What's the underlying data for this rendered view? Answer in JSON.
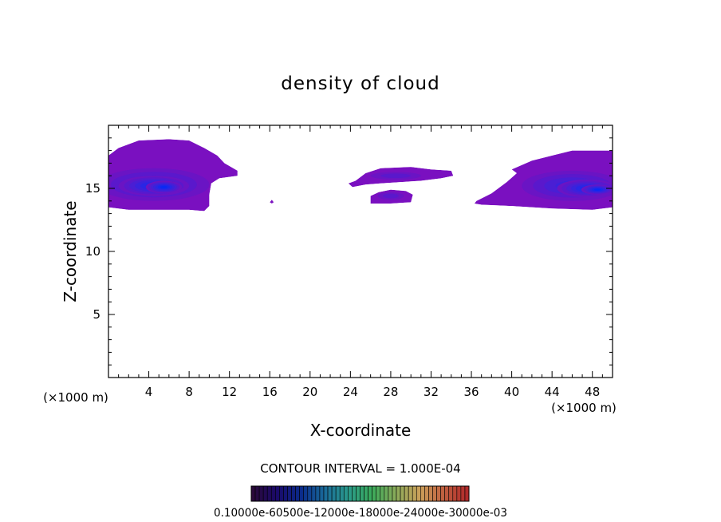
{
  "chart_data": {
    "type": "heatmap",
    "title": "density of cloud",
    "xlabel": "X-coordinate",
    "ylabel": "Z-coordinate",
    "x_unit_left": "(×1000 m)",
    "x_unit_right": "(×1000 m)",
    "xlim": [
      0,
      50
    ],
    "ylim": [
      0,
      20
    ],
    "xticks": [
      4,
      8,
      12,
      16,
      20,
      24,
      28,
      32,
      36,
      40,
      44,
      48
    ],
    "xtick_labels": [
      "4",
      "8",
      "12",
      "16",
      "20",
      "24",
      "28",
      "32",
      "36",
      "40",
      "44",
      "48"
    ],
    "yticks": [
      5,
      10,
      15
    ],
    "ytick_labels": [
      "5",
      "10",
      "15"
    ],
    "contour_interval_text": "CONTOUR INTERVAL = 1.000E-04",
    "colorbar_labels_text": "0.10000e-60500e-12000e-18000e-24000e-30000e-03",
    "colorbar_colors": [
      "#2a0a3a",
      "#1a0a6a",
      "#0a2a8a",
      "#1a6a9a",
      "#2a9a8a",
      "#3aaa5a",
      "#8aaa5a",
      "#caa05a",
      "#c06040",
      "#b02a2a"
    ],
    "level_colors": [
      "#7a10c0",
      "#6a14c4",
      "#5a18cc",
      "#4a1ed4",
      "#3a22dc",
      "#2a26e4",
      "#1a28ec",
      "#0a28f4"
    ],
    "cloud_regions": [
      {
        "points": [
          [
            0,
            17.6
          ],
          [
            1,
            18.2
          ],
          [
            3,
            18.8
          ],
          [
            6,
            18.9
          ],
          [
            8,
            18.8
          ],
          [
            9.5,
            18.2
          ],
          [
            10.8,
            17.6
          ],
          [
            11.5,
            17
          ],
          [
            12.8,
            16.4
          ],
          [
            12.8,
            16
          ],
          [
            11,
            15.8
          ],
          [
            10.2,
            15.4
          ],
          [
            10,
            14.5
          ],
          [
            10,
            13.6
          ],
          [
            9.5,
            13.2
          ],
          [
            8,
            13.3
          ],
          [
            6,
            13.3
          ],
          [
            4,
            13.3
          ],
          [
            2,
            13.3
          ],
          [
            0,
            13.5
          ]
        ],
        "levels": [
          {
            "x": 4.5,
            "y": 15.3,
            "rx": 5.5,
            "ry": 1.3,
            "level": 4
          },
          {
            "x": 4.5,
            "y": 15.2,
            "rx": 3.5,
            "ry": 0.8,
            "level": 6
          },
          {
            "x": 5.5,
            "y": 15.1,
            "rx": 1.8,
            "ry": 0.5,
            "level": 7
          }
        ]
      },
      {
        "points": [
          [
            16.2,
            14.1
          ],
          [
            16.4,
            13.9
          ],
          [
            16.2,
            13.8
          ],
          [
            16,
            13.9
          ]
        ],
        "levels": []
      },
      {
        "points": [
          [
            23.8,
            15.4
          ],
          [
            24.5,
            15.6
          ],
          [
            25.5,
            16.2
          ],
          [
            27,
            16.6
          ],
          [
            30,
            16.7
          ],
          [
            32,
            16.5
          ],
          [
            34,
            16.4
          ],
          [
            34.2,
            16
          ],
          [
            33,
            15.8
          ],
          [
            31,
            15.6
          ],
          [
            29,
            15.5
          ],
          [
            27,
            15.4
          ],
          [
            25.5,
            15.3
          ],
          [
            24.2,
            15.1
          ]
        ],
        "levels": [
          {
            "x": 28.5,
            "y": 16,
            "rx": 2.5,
            "ry": 0.3,
            "level": 2
          }
        ]
      },
      {
        "points": [
          [
            26,
            14.4
          ],
          [
            26.8,
            14.7
          ],
          [
            28,
            14.9
          ],
          [
            29.5,
            14.8
          ],
          [
            30.2,
            14.5
          ],
          [
            30,
            13.9
          ],
          [
            28,
            13.8
          ],
          [
            26,
            13.8
          ]
        ],
        "levels": [
          {
            "x": 28,
            "y": 14.4,
            "rx": 1.3,
            "ry": 0.3,
            "level": 2
          }
        ]
      },
      {
        "points": [
          [
            36.5,
            14
          ],
          [
            38,
            14.6
          ],
          [
            39.5,
            15.5
          ],
          [
            40.5,
            16.2
          ],
          [
            40,
            16.5
          ],
          [
            42,
            17.2
          ],
          [
            44,
            17.6
          ],
          [
            46,
            18
          ],
          [
            48,
            18
          ],
          [
            50,
            18
          ],
          [
            50,
            13.5
          ],
          [
            48,
            13.3
          ],
          [
            44,
            13.4
          ],
          [
            40,
            13.6
          ],
          [
            37,
            13.7
          ],
          [
            36.3,
            13.8
          ]
        ],
        "levels": [
          {
            "x": 46,
            "y": 15.2,
            "rx": 5,
            "ry": 1.2,
            "level": 4
          },
          {
            "x": 47.5,
            "y": 15,
            "rx": 3,
            "ry": 0.7,
            "level": 6
          },
          {
            "x": 48.5,
            "y": 14.9,
            "rx": 1.6,
            "ry": 0.4,
            "level": 7
          }
        ]
      }
    ]
  }
}
